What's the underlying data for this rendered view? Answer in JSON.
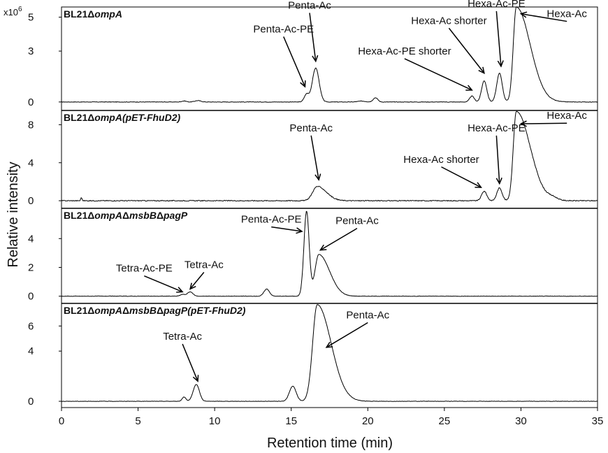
{
  "chart_data": {
    "type": "line",
    "multiplier": "x10",
    "multiplier_exp": "6",
    "xlabel": "Retention time (min)",
    "ylabel": "Relative intensity",
    "xlim": [
      0,
      35
    ],
    "xticks": [
      "0",
      "5",
      "10",
      "15",
      "20",
      "25",
      "30",
      "35"
    ],
    "panels": [
      {
        "name": "BL21ΔompA",
        "label_parts": [
          {
            "t": "BL21Δ",
            "i": false
          },
          {
            "t": "ompA",
            "i": true
          }
        ],
        "ylim": [
          -0.5,
          5.6
        ],
        "yticks": [
          {
            "v": 0,
            "label": "0"
          },
          {
            "v": 3,
            "label": "3"
          },
          {
            "v": 5,
            "label": "5"
          }
        ],
        "peaks": [
          {
            "x": 8.0,
            "h": 0.06,
            "w": 0.15
          },
          {
            "x": 8.9,
            "h": 0.08,
            "w": 0.2
          },
          {
            "x": 16.0,
            "h": 0.45,
            "w": 0.15
          },
          {
            "x": 16.6,
            "h": 2.0,
            "w": 0.22
          },
          {
            "x": 19.6,
            "h": 0.05,
            "w": 0.25
          },
          {
            "x": 20.5,
            "h": 0.25,
            "w": 0.15
          },
          {
            "x": 26.8,
            "h": 0.35,
            "w": 0.15
          },
          {
            "x": 27.6,
            "h": 1.25,
            "w": 0.17
          },
          {
            "x": 28.6,
            "h": 1.7,
            "w": 0.18
          },
          {
            "x": 29.7,
            "h": 5.6,
            "w": 0.2,
            "tail": 0.9
          }
        ],
        "noise": 0.03,
        "annotations": [
          {
            "text": "Penta-Ac",
            "x": 16.2,
            "y": 5.5,
            "tx": 16.6,
            "ty": 2.4
          },
          {
            "text": "Penta-Ac-PE",
            "x": 14.5,
            "y": 4.1,
            "tx": 15.9,
            "ty": 0.9
          },
          {
            "text": "Hexa-Ac-PE",
            "x": 28.4,
            "y": 5.6,
            "tx": 28.7,
            "ty": 2.1
          },
          {
            "text": "Hexa-Ac shorter",
            "x": 25.3,
            "y": 4.6,
            "tx": 27.6,
            "ty": 1.7
          },
          {
            "text": "Hexa-Ac-PE shorter",
            "x": 22.4,
            "y": 2.8,
            "tx": 26.8,
            "ty": 0.7
          },
          {
            "text": "Hexa-Ac",
            "x": 33.0,
            "y": 5.0,
            "tx": 30.0,
            "ty": 5.2
          }
        ]
      },
      {
        "name": "BL21ΔompA(pET-FhuD2)",
        "label_parts": [
          {
            "t": "BL21Δ",
            "i": false
          },
          {
            "t": "ompA(pET-FhuD2)",
            "i": true
          }
        ],
        "ylim": [
          -0.8,
          9.5
        ],
        "yticks": [
          {
            "v": 0,
            "label": "0"
          },
          {
            "v": 4,
            "label": "4"
          },
          {
            "v": 8,
            "label": "8"
          }
        ],
        "peaks": [
          {
            "x": 1.3,
            "h": 0.35,
            "w": 0.04
          },
          {
            "x": 16.7,
            "h": 1.5,
            "w": 0.3,
            "tail": 0.6
          },
          {
            "x": 27.6,
            "h": 1.0,
            "w": 0.17
          },
          {
            "x": 28.6,
            "h": 1.35,
            "w": 0.17
          },
          {
            "x": 29.7,
            "h": 9.4,
            "w": 0.2,
            "tail": 0.9
          },
          {
            "x": 32.1,
            "h": 0.25,
            "w": 0.3
          }
        ],
        "noise": 0.09,
        "annotations": [
          {
            "text": "Penta-Ac",
            "x": 16.3,
            "y": 7.3,
            "tx": 16.8,
            "ty": 2.2
          },
          {
            "text": "Hexa-Ac-PE",
            "x": 28.4,
            "y": 7.3,
            "tx": 28.6,
            "ty": 1.8
          },
          {
            "text": "Hexa-Ac shorter",
            "x": 24.8,
            "y": 4.0,
            "tx": 27.4,
            "ty": 1.4
          },
          {
            "text": "Hexa-Ac",
            "x": 33.0,
            "y": 8.6,
            "tx": 30.0,
            "ty": 8.1
          }
        ]
      },
      {
        "name": "BL21ΔompAΔmsbBΔpagP",
        "label_parts": [
          {
            "t": "BL21Δ",
            "i": false
          },
          {
            "t": "ompA",
            "i": true
          },
          {
            "t": "Δ",
            "i": false
          },
          {
            "t": "msbB",
            "i": true
          },
          {
            "t": "Δ",
            "i": false
          },
          {
            "t": "pagP",
            "i": true
          }
        ],
        "ylim": [
          -0.5,
          6.1
        ],
        "yticks": [
          {
            "v": 0,
            "label": "0"
          },
          {
            "v": 2,
            "label": "2"
          },
          {
            "v": 4,
            "label": "4"
          }
        ],
        "peaks": [
          {
            "x": 7.9,
            "h": 0.12,
            "w": 0.15
          },
          {
            "x": 8.4,
            "h": 0.3,
            "w": 0.18
          },
          {
            "x": 13.4,
            "h": 0.5,
            "w": 0.18
          },
          {
            "x": 16.0,
            "h": 5.9,
            "w": 0.17
          },
          {
            "x": 16.8,
            "h": 2.9,
            "w": 0.25,
            "tail": 0.7
          }
        ],
        "noise": 0.03,
        "annotations": [
          {
            "text": "Penta-Ac-PE",
            "x": 13.7,
            "y": 5.1,
            "tx": 15.7,
            "ty": 4.5
          },
          {
            "text": "Penta-Ac",
            "x": 19.3,
            "y": 5.0,
            "tx": 16.9,
            "ty": 3.2
          },
          {
            "text": "Tetra-Ac-PE",
            "x": 5.4,
            "y": 1.7,
            "tx": 7.9,
            "ty": 0.3
          },
          {
            "text": "Tetra-Ac",
            "x": 9.3,
            "y": 1.95,
            "tx": 8.4,
            "ty": 0.5
          }
        ]
      },
      {
        "name": "BL21ΔompAΔmsbBΔpagP(pET-FhuD2)",
        "label_parts": [
          {
            "t": "BL21Δ",
            "i": false
          },
          {
            "t": "ompA",
            "i": true
          },
          {
            "t": "Δ",
            "i": false
          },
          {
            "t": "msbB",
            "i": true
          },
          {
            "t": "Δ",
            "i": false
          },
          {
            "t": "pagP(pET-FhuD2)",
            "i": true
          }
        ],
        "ylim": [
          -0.5,
          7.8
        ],
        "yticks": [
          {
            "v": 0,
            "label": "0"
          },
          {
            "v": 4,
            "label": "4"
          },
          {
            "v": 6,
            "label": "6"
          }
        ],
        "peaks": [
          {
            "x": 8.0,
            "h": 0.35,
            "w": 0.12
          },
          {
            "x": 8.8,
            "h": 1.35,
            "w": 0.2
          },
          {
            "x": 15.1,
            "h": 1.2,
            "w": 0.22
          },
          {
            "x": 16.7,
            "h": 7.7,
            "w": 0.3,
            "tail": 0.9
          }
        ],
        "noise": 0.03,
        "annotations": [
          {
            "text": "Tetra-Ac",
            "x": 7.9,
            "y": 4.9,
            "tx": 8.9,
            "ty": 1.6
          },
          {
            "text": "Penta-Ac",
            "x": 20.0,
            "y": 6.6,
            "tx": 17.3,
            "ty": 4.3
          }
        ]
      }
    ]
  }
}
